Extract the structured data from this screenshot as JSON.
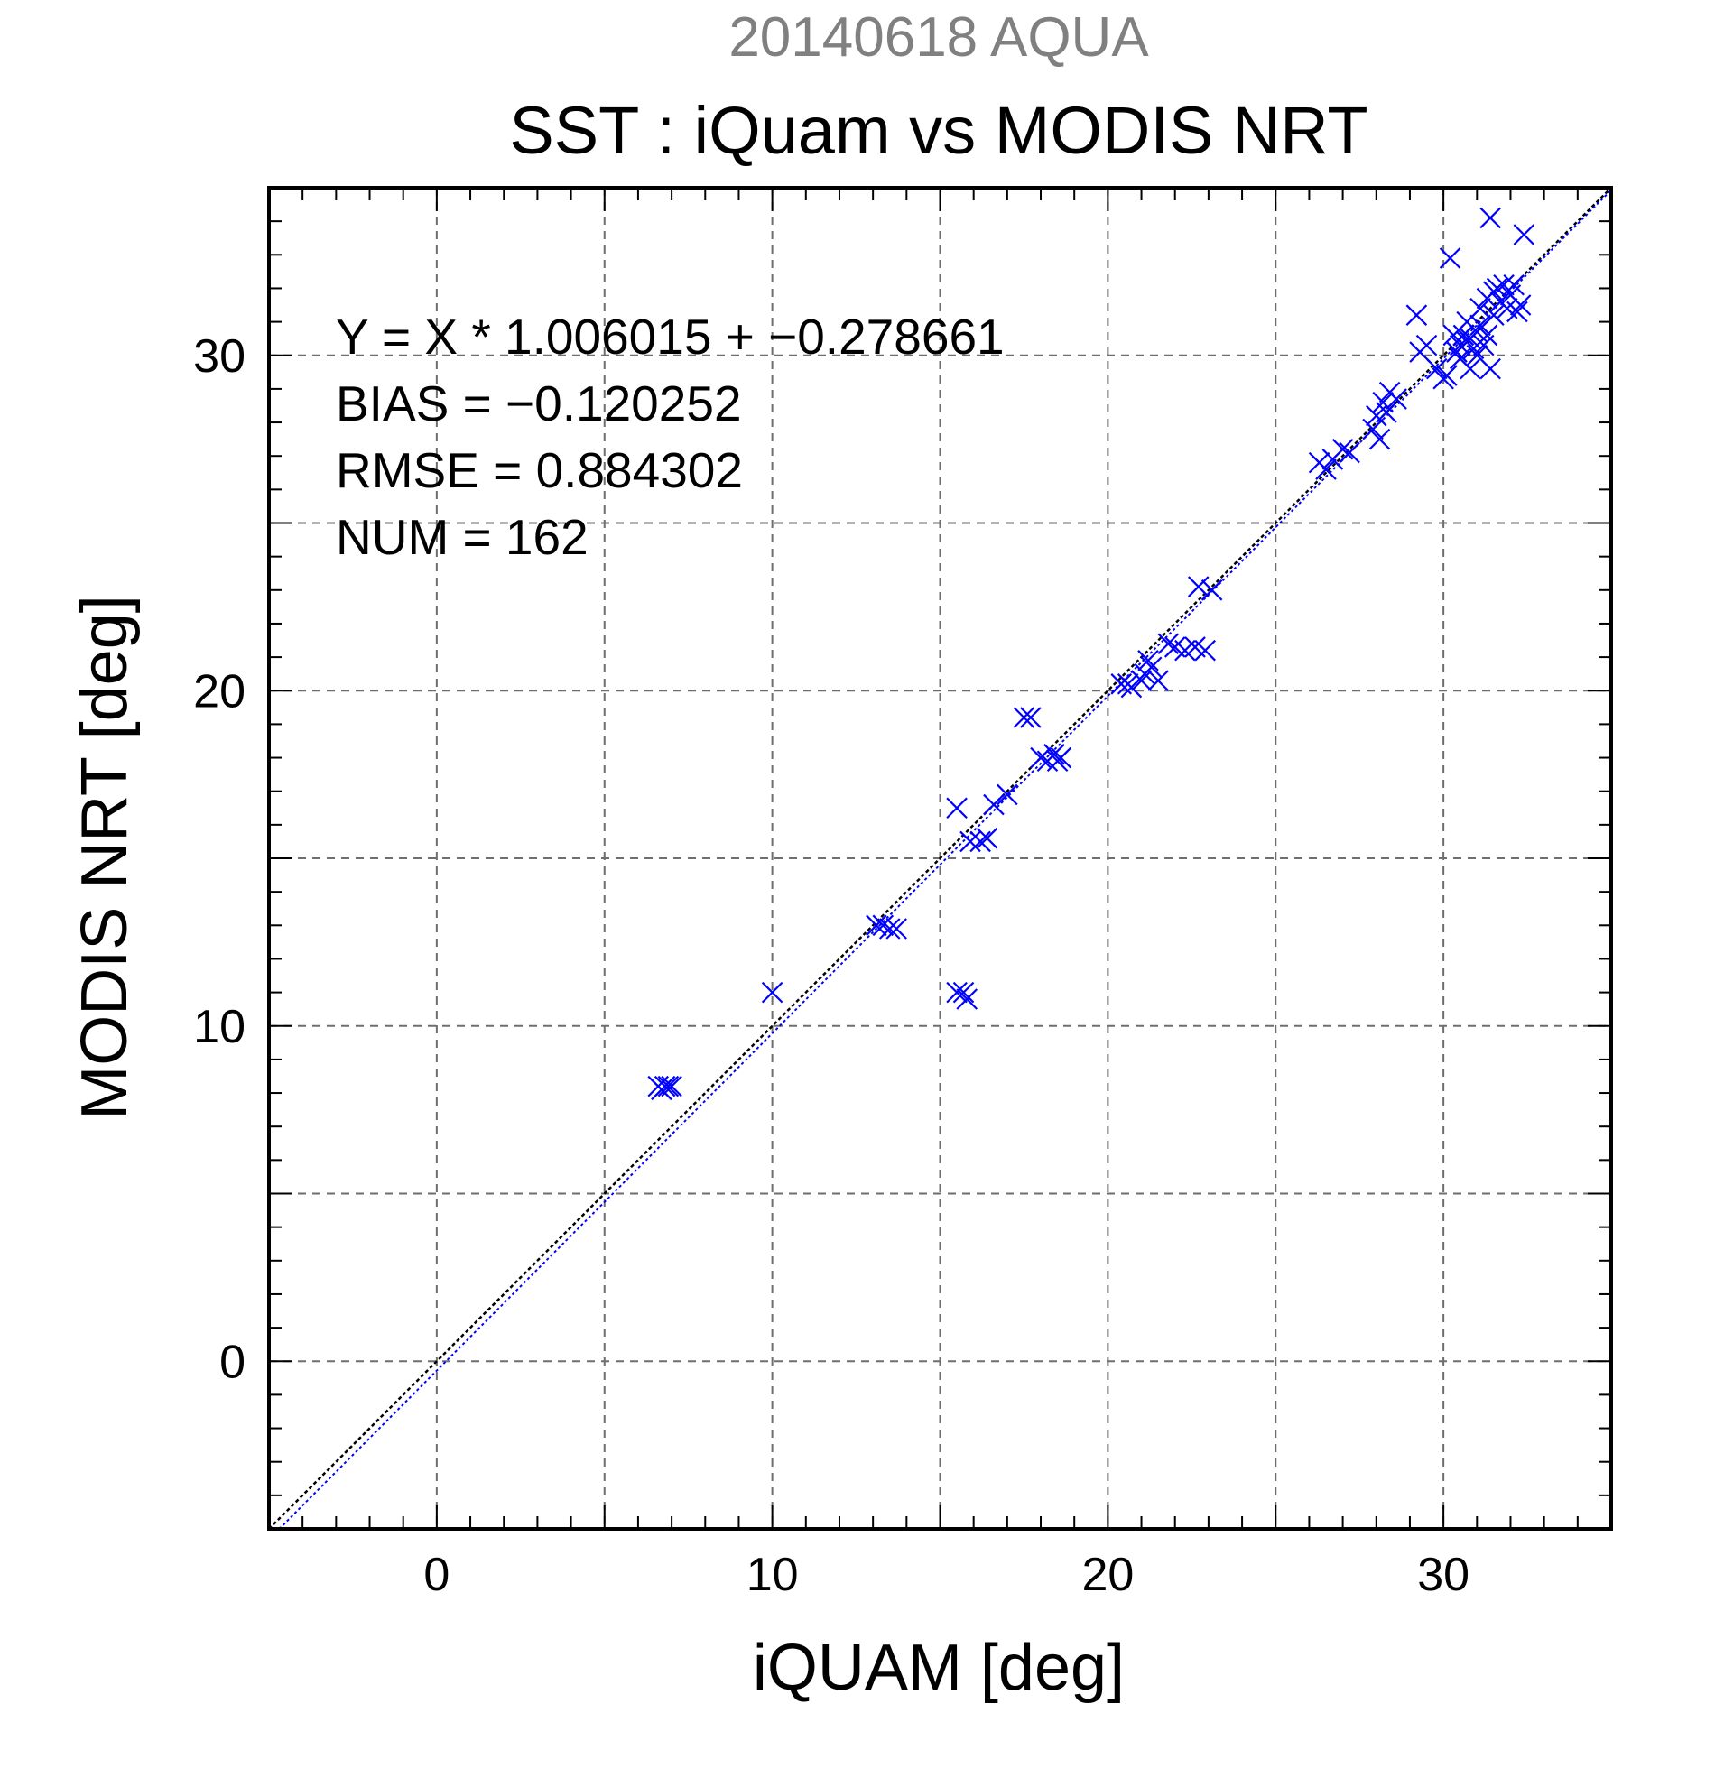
{
  "chart_data": {
    "type": "scatter",
    "title": "20140618 AQUA",
    "subtitle": "SST : iQuam vs MODIS NRT",
    "xlabel": "iQUAM [deg]",
    "ylabel": "MODIS NRT [deg]",
    "xlim": [
      -5,
      35
    ],
    "ylim": [
      -5,
      35
    ],
    "x_ticks": [
      0,
      10,
      20,
      30
    ],
    "y_ticks": [
      0,
      10,
      20,
      30
    ],
    "x_tick_labels": [
      "0",
      "10",
      "20",
      "30"
    ],
    "y_tick_labels": [
      "0",
      "10",
      "20",
      "30"
    ],
    "grid": true,
    "grid_step": 5,
    "minor_tick_step": 1,
    "marker": "x",
    "colors": {
      "points": "#0000ff",
      "fit_line": "#0000ff",
      "identity_line": "#000000",
      "title": "#808080"
    },
    "annotations": [
      "Y = X * 1.006015 + −0.278661",
      "BIAS = −0.120252",
      "RMSE = 0.884302",
      "NUM = 162"
    ],
    "fit": {
      "slope": 1.006015,
      "intercept": -0.278661
    },
    "identity": {
      "slope": 1,
      "intercept": 0
    },
    "series": [
      {
        "points": [
          [
            6.6,
            8.2
          ],
          [
            6.8,
            8.2
          ],
          [
            7.0,
            8.2
          ],
          [
            6.7,
            8.1
          ],
          [
            6.9,
            8.2
          ],
          [
            10.0,
            11.0
          ],
          [
            13.1,
            13.0
          ],
          [
            13.3,
            13.0
          ],
          [
            13.5,
            12.9
          ],
          [
            13.7,
            12.9
          ],
          [
            15.5,
            11.0
          ],
          [
            15.7,
            11.0
          ],
          [
            15.8,
            10.8
          ],
          [
            15.5,
            16.5
          ],
          [
            15.9,
            15.5
          ],
          [
            16.2,
            15.5
          ],
          [
            16.4,
            15.6
          ],
          [
            16.6,
            16.6
          ],
          [
            17.0,
            16.9
          ],
          [
            17.5,
            19.2
          ],
          [
            17.7,
            19.2
          ],
          [
            18.0,
            18.0
          ],
          [
            18.2,
            17.9
          ],
          [
            18.4,
            18.1
          ],
          [
            18.5,
            17.9
          ],
          [
            18.6,
            18.0
          ],
          [
            20.4,
            20.2
          ],
          [
            20.6,
            20.2
          ],
          [
            20.7,
            20.1
          ],
          [
            21.0,
            20.3
          ],
          [
            21.1,
            20.5
          ],
          [
            21.3,
            20.7
          ],
          [
            21.5,
            20.3
          ],
          [
            21.2,
            20.9
          ],
          [
            21.8,
            21.4
          ],
          [
            22.0,
            21.3
          ],
          [
            22.3,
            21.2
          ],
          [
            22.6,
            21.3
          ],
          [
            22.9,
            21.2
          ],
          [
            22.7,
            23.1
          ],
          [
            23.1,
            23.0
          ],
          [
            26.3,
            26.8
          ],
          [
            26.5,
            26.6
          ],
          [
            26.7,
            26.9
          ],
          [
            27.0,
            27.2
          ],
          [
            27.2,
            27.1
          ],
          [
            27.9,
            27.8
          ],
          [
            28.0,
            28.2
          ],
          [
            28.1,
            27.5
          ],
          [
            28.2,
            28.6
          ],
          [
            28.4,
            28.9
          ],
          [
            28.6,
            28.7
          ],
          [
            28.3,
            28.3
          ],
          [
            29.3,
            30.1
          ],
          [
            29.5,
            30.3
          ],
          [
            29.2,
            31.2
          ],
          [
            29.8,
            29.6
          ],
          [
            30.0,
            29.3
          ],
          [
            30.1,
            29.4
          ],
          [
            30.2,
            32.9
          ],
          [
            30.3,
            30.6
          ],
          [
            30.4,
            30.1
          ],
          [
            30.5,
            30.3
          ],
          [
            30.5,
            29.9
          ],
          [
            30.6,
            30.6
          ],
          [
            30.7,
            30.4
          ],
          [
            30.7,
            31.0
          ],
          [
            30.8,
            30.5
          ],
          [
            30.8,
            29.6
          ],
          [
            30.9,
            30.2
          ],
          [
            31.0,
            30.7
          ],
          [
            31.0,
            30.0
          ],
          [
            31.1,
            30.9
          ],
          [
            31.1,
            31.4
          ],
          [
            31.2,
            30.3
          ],
          [
            31.3,
            31.7
          ],
          [
            31.3,
            30.6
          ],
          [
            31.4,
            29.6
          ],
          [
            31.4,
            34.1
          ],
          [
            31.5,
            31.9
          ],
          [
            31.5,
            31.2
          ],
          [
            31.6,
            32.0
          ],
          [
            31.7,
            31.6
          ],
          [
            31.8,
            32.1
          ],
          [
            31.9,
            31.4
          ],
          [
            32.0,
            31.8
          ],
          [
            32.1,
            32.1
          ],
          [
            32.2,
            31.3
          ],
          [
            32.4,
            33.6
          ],
          [
            32.3,
            31.5
          ]
        ]
      }
    ]
  }
}
